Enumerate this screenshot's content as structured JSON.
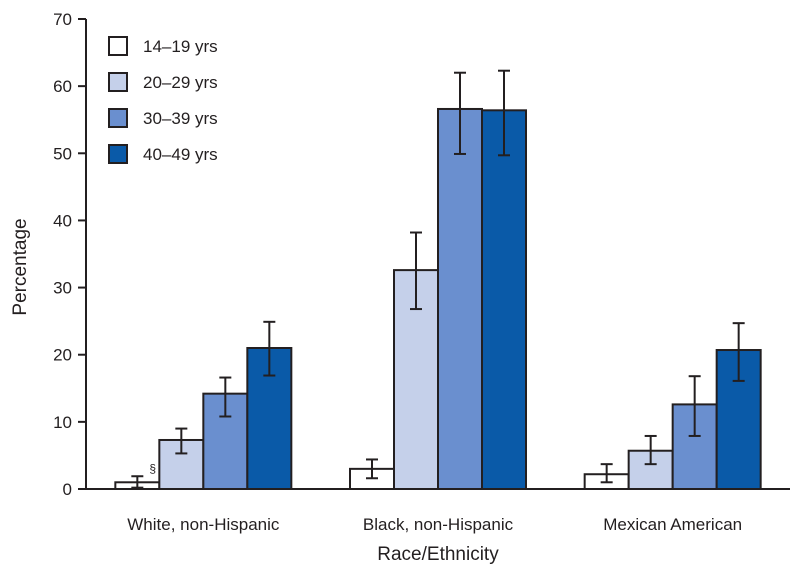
{
  "chart_data": {
    "type": "bar",
    "xlabel": "Race/Ethnicity",
    "ylabel": "Percentage",
    "ylim": [
      0,
      70
    ],
    "yticks": [
      0,
      10,
      20,
      30,
      40,
      50,
      60,
      70
    ],
    "grid": false,
    "legend_position": "top-left",
    "categories": [
      "White, non-Hispanic",
      "Black, non-Hispanic",
      "Mexican American"
    ],
    "series": [
      {
        "name": "14–19 yrs",
        "color": "#ffffff",
        "values": [
          1.0,
          3.0,
          2.2
        ],
        "err_low": [
          0.2,
          1.6,
          1.0
        ],
        "err_high": [
          1.9,
          4.4,
          3.7
        ]
      },
      {
        "name": "20–29 yrs",
        "color": "#c5d0ea",
        "values": [
          7.3,
          32.6,
          5.7
        ],
        "err_low": [
          5.3,
          26.8,
          3.7
        ],
        "err_high": [
          9.0,
          38.2,
          7.9
        ]
      },
      {
        "name": "30–39 yrs",
        "color": "#6a8fcf",
        "values": [
          14.2,
          56.6,
          12.6
        ],
        "err_low": [
          10.8,
          49.9,
          7.9
        ],
        "err_high": [
          16.6,
          62.0,
          16.8
        ]
      },
      {
        "name": "40–49 yrs",
        "color": "#0a5aa8",
        "values": [
          21.0,
          56.4,
          20.7
        ],
        "err_low": [
          16.9,
          49.7,
          16.1
        ],
        "err_high": [
          24.9,
          62.3,
          24.7
        ]
      }
    ],
    "annotations": [
      {
        "text": "§",
        "category": "White, non-Hispanic",
        "series": "14–19 yrs"
      }
    ]
  }
}
